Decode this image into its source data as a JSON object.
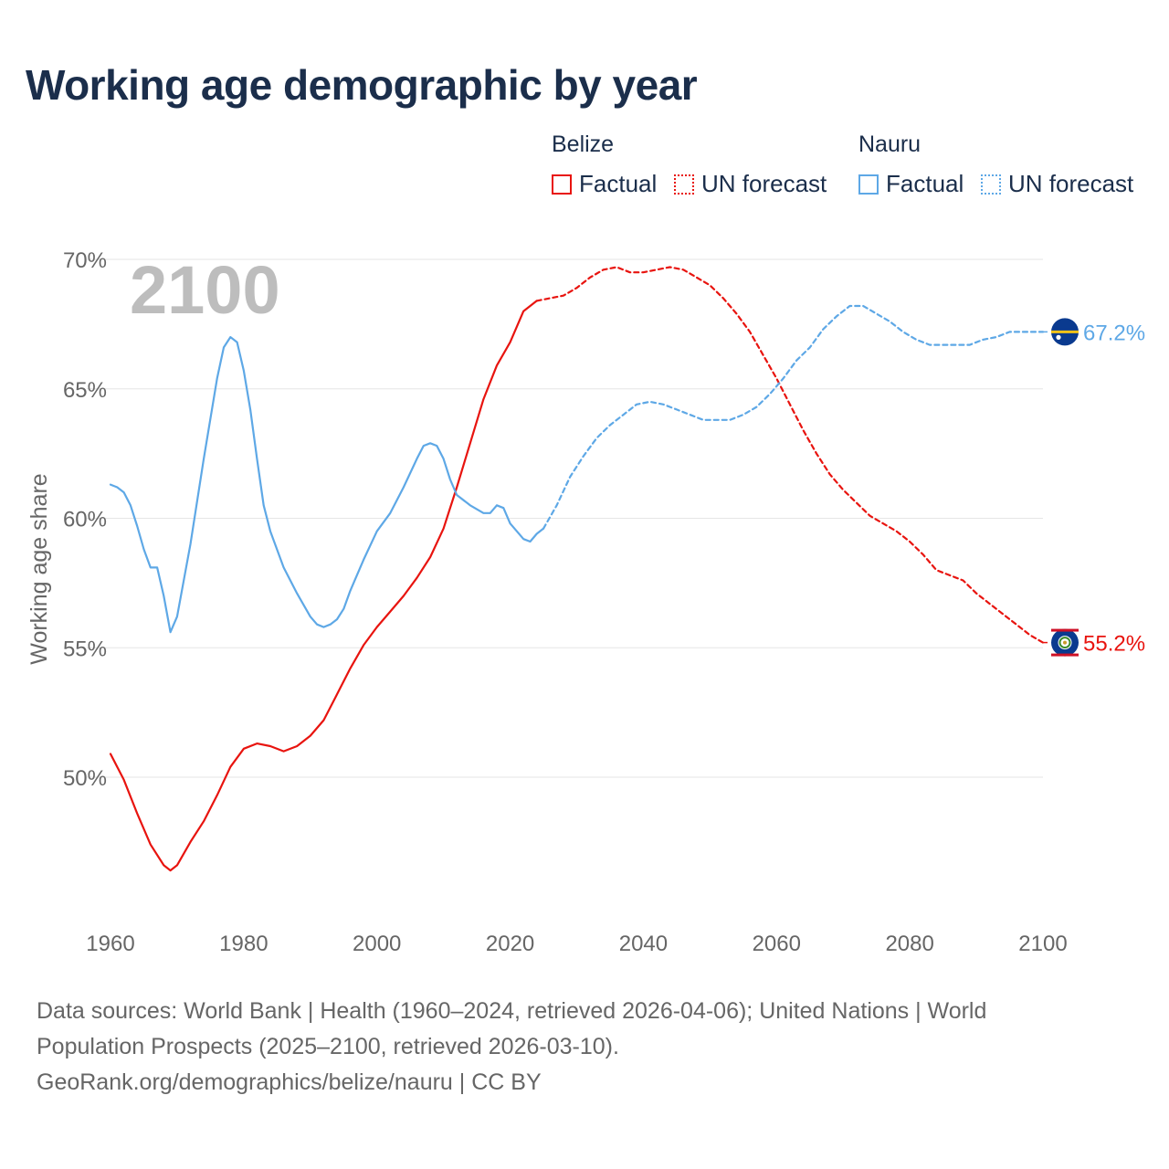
{
  "title": "Working age demographic by year",
  "legend": {
    "groups": [
      {
        "name": "Belize",
        "color": "#e8140f",
        "items": [
          {
            "label": "Factual",
            "style": "solid"
          },
          {
            "label": "UN forecast",
            "style": "dotted"
          }
        ]
      },
      {
        "name": "Nauru",
        "color": "#5ea8e6",
        "items": [
          {
            "label": "Factual",
            "style": "solid"
          },
          {
            "label": "UN forecast",
            "style": "dotted"
          }
        ]
      }
    ]
  },
  "year_watermark": "2100",
  "end_labels": {
    "belize": "55.2%",
    "nauru": "67.2%"
  },
  "footer": {
    "line1": "Data sources: World Bank | Health (1960–2024, retrieved 2026-04-06); United Nations | World",
    "line2": "Population Prospects (2025–2100, retrieved 2026-03-10).",
    "line3": "GeoRank.org/demographics/belize/nauru | CC BY"
  },
  "chart_data": {
    "type": "line",
    "title": "Working age demographic by year",
    "xlabel": "",
    "ylabel": "Working age share",
    "xlim": [
      1960,
      2100
    ],
    "ylim": [
      45,
      71
    ],
    "x_ticks": [
      1960,
      1980,
      2000,
      2020,
      2040,
      2060,
      2080,
      2100
    ],
    "x_tick_labels": [
      "1960",
      "1980",
      "2000",
      "2020",
      "2040",
      "2060",
      "2080",
      "2100"
    ],
    "y_ticks": [
      50,
      55,
      60,
      65,
      70
    ],
    "y_tick_labels": [
      "50%",
      "55%",
      "60%",
      "65%",
      "70%"
    ],
    "grid": true,
    "series": [
      {
        "name": "Belize",
        "segment": "Factual",
        "color": "#e8140f",
        "dash": "solid",
        "points": [
          [
            1960,
            50.9
          ],
          [
            1962,
            49.9
          ],
          [
            1964,
            48.6
          ],
          [
            1966,
            47.4
          ],
          [
            1968,
            46.6
          ],
          [
            1969,
            46.4
          ],
          [
            1970,
            46.6
          ],
          [
            1972,
            47.5
          ],
          [
            1974,
            48.3
          ],
          [
            1976,
            49.3
          ],
          [
            1978,
            50.4
          ],
          [
            1980,
            51.1
          ],
          [
            1982,
            51.3
          ],
          [
            1984,
            51.2
          ],
          [
            1986,
            51.0
          ],
          [
            1988,
            51.2
          ],
          [
            1990,
            51.6
          ],
          [
            1992,
            52.2
          ],
          [
            1994,
            53.2
          ],
          [
            1996,
            54.2
          ],
          [
            1998,
            55.1
          ],
          [
            2000,
            55.8
          ],
          [
            2002,
            56.4
          ],
          [
            2004,
            57.0
          ],
          [
            2006,
            57.7
          ],
          [
            2008,
            58.5
          ],
          [
            2010,
            59.6
          ],
          [
            2012,
            61.2
          ],
          [
            2014,
            62.9
          ],
          [
            2016,
            64.6
          ],
          [
            2018,
            65.9
          ],
          [
            2020,
            66.8
          ],
          [
            2022,
            68.0
          ],
          [
            2024,
            68.4
          ]
        ]
      },
      {
        "name": "Belize",
        "segment": "UN forecast",
        "color": "#e8140f",
        "dash": "dashed",
        "points": [
          [
            2024,
            68.4
          ],
          [
            2026,
            68.5
          ],
          [
            2028,
            68.6
          ],
          [
            2030,
            68.9
          ],
          [
            2032,
            69.3
          ],
          [
            2034,
            69.6
          ],
          [
            2036,
            69.7
          ],
          [
            2038,
            69.5
          ],
          [
            2040,
            69.5
          ],
          [
            2042,
            69.6
          ],
          [
            2044,
            69.7
          ],
          [
            2046,
            69.6
          ],
          [
            2048,
            69.3
          ],
          [
            2050,
            69.0
          ],
          [
            2052,
            68.5
          ],
          [
            2054,
            67.9
          ],
          [
            2056,
            67.2
          ],
          [
            2058,
            66.3
          ],
          [
            2060,
            65.4
          ],
          [
            2062,
            64.4
          ],
          [
            2064,
            63.4
          ],
          [
            2066,
            62.5
          ],
          [
            2068,
            61.7
          ],
          [
            2070,
            61.1
          ],
          [
            2072,
            60.6
          ],
          [
            2074,
            60.1
          ],
          [
            2076,
            59.8
          ],
          [
            2078,
            59.5
          ],
          [
            2080,
            59.1
          ],
          [
            2082,
            58.6
          ],
          [
            2084,
            58.0
          ],
          [
            2086,
            57.8
          ],
          [
            2088,
            57.6
          ],
          [
            2090,
            57.1
          ],
          [
            2092,
            56.7
          ],
          [
            2094,
            56.3
          ],
          [
            2096,
            55.9
          ],
          [
            2098,
            55.5
          ],
          [
            2100,
            55.2
          ]
        ]
      },
      {
        "name": "Nauru",
        "segment": "Factual",
        "color": "#5ea8e6",
        "dash": "solid",
        "points": [
          [
            1960,
            61.3
          ],
          [
            1961,
            61.2
          ],
          [
            1962,
            61.0
          ],
          [
            1963,
            60.5
          ],
          [
            1964,
            59.7
          ],
          [
            1965,
            58.8
          ],
          [
            1966,
            58.1
          ],
          [
            1967,
            58.1
          ],
          [
            1968,
            57.0
          ],
          [
            1969,
            55.6
          ],
          [
            1970,
            56.2
          ],
          [
            1972,
            59.0
          ],
          [
            1974,
            62.3
          ],
          [
            1976,
            65.4
          ],
          [
            1977,
            66.6
          ],
          [
            1978,
            67.0
          ],
          [
            1979,
            66.8
          ],
          [
            1980,
            65.7
          ],
          [
            1981,
            64.2
          ],
          [
            1982,
            62.3
          ],
          [
            1983,
            60.5
          ],
          [
            1984,
            59.5
          ],
          [
            1986,
            58.1
          ],
          [
            1988,
            57.1
          ],
          [
            1990,
            56.2
          ],
          [
            1991,
            55.9
          ],
          [
            1992,
            55.8
          ],
          [
            1993,
            55.9
          ],
          [
            1994,
            56.1
          ],
          [
            1995,
            56.5
          ],
          [
            1996,
            57.2
          ],
          [
            1998,
            58.4
          ],
          [
            2000,
            59.5
          ],
          [
            2002,
            60.2
          ],
          [
            2004,
            61.2
          ],
          [
            2006,
            62.3
          ],
          [
            2007,
            62.8
          ],
          [
            2008,
            62.9
          ],
          [
            2009,
            62.8
          ],
          [
            2010,
            62.3
          ],
          [
            2011,
            61.5
          ],
          [
            2012,
            60.9
          ],
          [
            2014,
            60.5
          ],
          [
            2016,
            60.2
          ],
          [
            2017,
            60.2
          ],
          [
            2018,
            60.5
          ],
          [
            2019,
            60.4
          ],
          [
            2020,
            59.8
          ],
          [
            2022,
            59.2
          ],
          [
            2023,
            59.1
          ],
          [
            2024,
            59.4
          ],
          [
            2025,
            59.6
          ]
        ]
      },
      {
        "name": "Nauru",
        "segment": "UN forecast",
        "color": "#5ea8e6",
        "dash": "dashed",
        "points": [
          [
            2025,
            59.6
          ],
          [
            2027,
            60.5
          ],
          [
            2029,
            61.6
          ],
          [
            2031,
            62.4
          ],
          [
            2033,
            63.1
          ],
          [
            2035,
            63.6
          ],
          [
            2037,
            64.0
          ],
          [
            2039,
            64.4
          ],
          [
            2041,
            64.5
          ],
          [
            2043,
            64.4
          ],
          [
            2045,
            64.2
          ],
          [
            2047,
            64.0
          ],
          [
            2049,
            63.8
          ],
          [
            2051,
            63.8
          ],
          [
            2053,
            63.8
          ],
          [
            2055,
            64.0
          ],
          [
            2057,
            64.3
          ],
          [
            2059,
            64.8
          ],
          [
            2061,
            65.4
          ],
          [
            2063,
            66.1
          ],
          [
            2065,
            66.6
          ],
          [
            2067,
            67.3
          ],
          [
            2069,
            67.8
          ],
          [
            2071,
            68.2
          ],
          [
            2073,
            68.2
          ],
          [
            2075,
            67.9
          ],
          [
            2077,
            67.6
          ],
          [
            2079,
            67.2
          ],
          [
            2081,
            66.9
          ],
          [
            2083,
            66.7
          ],
          [
            2085,
            66.7
          ],
          [
            2087,
            66.7
          ],
          [
            2089,
            66.7
          ],
          [
            2091,
            66.9
          ],
          [
            2093,
            67.0
          ],
          [
            2095,
            67.2
          ],
          [
            2097,
            67.2
          ],
          [
            2100,
            67.2
          ]
        ]
      }
    ]
  }
}
